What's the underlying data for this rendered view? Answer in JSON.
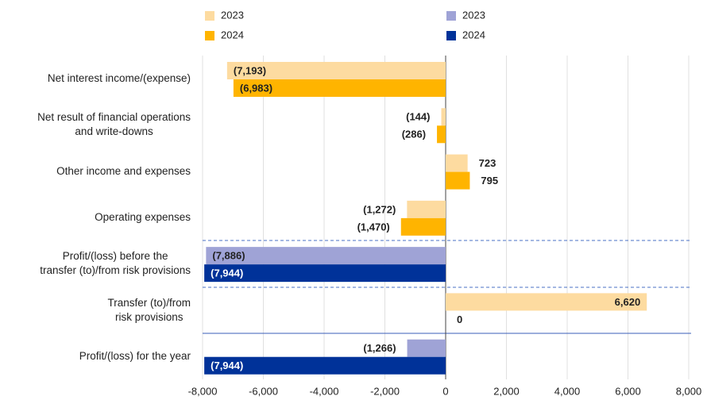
{
  "chart_data": {
    "type": "hbar",
    "categories": [
      "Net interest income/(expense)",
      "Net result of financial operations\nand write-downs",
      "Other income and expenses",
      "Operating expenses",
      "Profit/(loss) before the\ntransfer (to)/from risk provisions",
      "Transfer (to)/from\nrisk provisions",
      "Profit/(loss) for the year"
    ],
    "series": [
      {
        "name": "2023",
        "color": "#fddba0",
        "values": [
          -7193,
          -144,
          723,
          -1272,
          null,
          6620,
          null
        ],
        "value_labels": [
          "(7,193)",
          "(144)",
          "723",
          "(1,272)",
          null,
          "6,620",
          null
        ]
      },
      {
        "name": "2024",
        "color": "#ffb400",
        "values": [
          -6983,
          -286,
          795,
          -1470,
          null,
          0,
          null
        ],
        "value_labels": [
          "(6,983)",
          "(286)",
          "795",
          "(1,470)",
          null,
          "0",
          null
        ]
      },
      {
        "name": "2023",
        "color": "#9fa3d6",
        "values": [
          null,
          null,
          null,
          null,
          -7886,
          null,
          -1266
        ],
        "value_labels": [
          null,
          null,
          null,
          null,
          "(7,886)",
          null,
          "(1,266)"
        ]
      },
      {
        "name": "2024",
        "color": "#003299",
        "values": [
          null,
          null,
          null,
          null,
          -7944,
          null,
          -7944
        ],
        "value_labels": [
          null,
          null,
          null,
          null,
          "(7,944)",
          null,
          "(7,944)"
        ]
      }
    ],
    "xlim": [
      -8000,
      8000
    ],
    "xticks": [
      {
        "value": -8000,
        "label": "-8,000"
      },
      {
        "value": -6000,
        "label": "-6,000"
      },
      {
        "value": -4000,
        "label": "-4,000"
      },
      {
        "value": -2000,
        "label": "-2,000"
      },
      0,
      {
        "value": 2000,
        "label": "2,000"
      },
      {
        "value": 4000,
        "label": "4,000"
      },
      {
        "value": 6000,
        "label": "6,000"
      },
      {
        "value": 8000,
        "label": "8,000"
      }
    ],
    "grid": true
  }
}
